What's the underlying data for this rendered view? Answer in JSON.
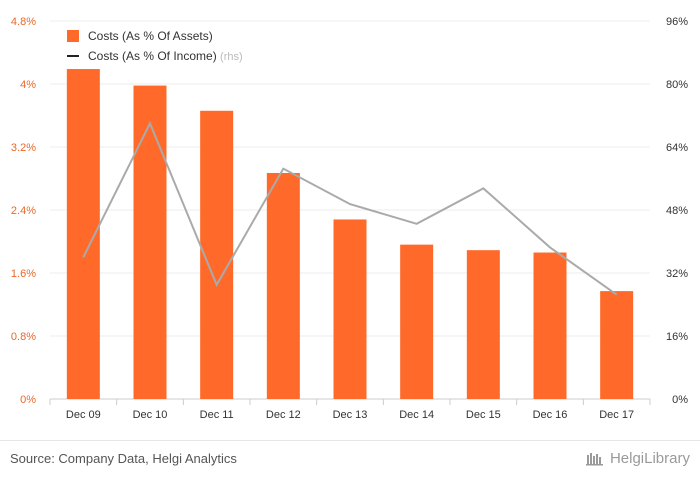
{
  "chart_data": {
    "type": "bar",
    "categories": [
      "Dec 09",
      "Dec 10",
      "Dec 11",
      "Dec 12",
      "Dec 13",
      "Dec 14",
      "Dec 15",
      "Dec 16",
      "Dec 17"
    ],
    "series": [
      {
        "name": "Costs (As % Of Assets)",
        "type": "bar",
        "axis": "left",
        "color": "#ff6a2a",
        "values": [
          4.19,
          3.98,
          3.66,
          2.87,
          2.28,
          1.96,
          1.89,
          1.86,
          1.37
        ]
      },
      {
        "name": "Costs (As % Of Income)",
        "type": "line",
        "axis": "right",
        "color": "#aaaaaa",
        "values": [
          36,
          70,
          29,
          58.5,
          49.5,
          44.5,
          53.5,
          38.5,
          26.5
        ]
      }
    ],
    "legend_rhs_suffix": "(rhs)",
    "y_left": {
      "ylim": [
        0,
        4.8
      ],
      "ticks": [
        "0%",
        "0.8%",
        "1.6%",
        "2.4%",
        "3.2%",
        "4%",
        "4.8%"
      ]
    },
    "y_right": {
      "ylim": [
        0,
        96
      ],
      "ticks": [
        "0%",
        "16%",
        "32%",
        "48%",
        "64%",
        "80%",
        "96%"
      ]
    },
    "grid": true,
    "legend_position": "top-left"
  },
  "footer": {
    "source": "Source: Company Data, Helgi Analytics",
    "brand": "HelgiLibrary"
  }
}
